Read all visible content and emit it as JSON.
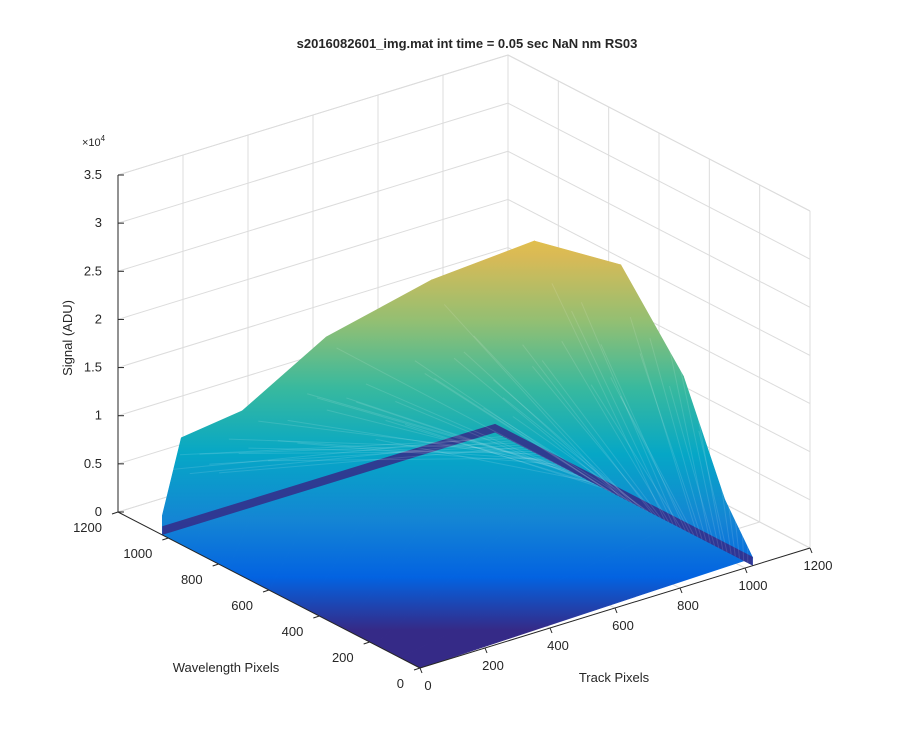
{
  "chart_data": {
    "type": "surface",
    "title": "s2016082601_img.mat int time = 0.05 sec  NaN nm RS03",
    "xlabel": "Track Pixels",
    "ylabel": "Wavelength Pixels",
    "zlabel": "Signal (ADU)",
    "xlim": [
      0,
      1200
    ],
    "ylim": [
      0,
      1200
    ],
    "zlim": [
      0,
      35000
    ],
    "z_exponent_label": "×10",
    "z_exponent_power": "4",
    "x_ticks": [
      {
        "value": 0,
        "label": "0"
      },
      {
        "value": 200,
        "label": "200"
      },
      {
        "value": 400,
        "label": "400"
      },
      {
        "value": 600,
        "label": "600"
      },
      {
        "value": 800,
        "label": "800"
      },
      {
        "value": 1000,
        "label": "1000"
      },
      {
        "value": 1200,
        "label": "1200"
      }
    ],
    "y_ticks": [
      {
        "value": 0,
        "label": "0"
      },
      {
        "value": 200,
        "label": "200"
      },
      {
        "value": 400,
        "label": "400"
      },
      {
        "value": 600,
        "label": "600"
      },
      {
        "value": 800,
        "label": "800"
      },
      {
        "value": 1000,
        "label": "1000"
      },
      {
        "value": 1200,
        "label": "1200"
      }
    ],
    "z_ticks": [
      {
        "value": 0,
        "label": "0"
      },
      {
        "value": 5000,
        "label": "0.5"
      },
      {
        "value": 10000,
        "label": "1"
      },
      {
        "value": 15000,
        "label": "1.5"
      },
      {
        "value": 20000,
        "label": "2"
      },
      {
        "value": 25000,
        "label": "2.5"
      },
      {
        "value": 30000,
        "label": "3"
      },
      {
        "value": 35000,
        "label": "3.5"
      }
    ],
    "grid": true,
    "colormap": "parula",
    "surface_extent": {
      "track": [
        0,
        1024
      ],
      "wavelength": [
        0,
        1024
      ]
    },
    "surface_ridge": [
      {
        "track": 0,
        "wavelength": 1024,
        "signal": 2000
      },
      {
        "track": 40,
        "wavelength": 1000,
        "signal": 10000
      },
      {
        "track": 150,
        "wavelength": 900,
        "signal": 13000
      },
      {
        "track": 300,
        "wavelength": 760,
        "signal": 21000
      },
      {
        "track": 500,
        "wavelength": 600,
        "signal": 27000
      },
      {
        "track": 700,
        "wavelength": 450,
        "signal": 31000
      },
      {
        "track": 850,
        "wavelength": 300,
        "signal": 29000
      },
      {
        "track": 950,
        "wavelength": 180,
        "signal": 18000
      },
      {
        "track": 1000,
        "wavelength": 80,
        "signal": 6000
      },
      {
        "track": 1024,
        "wavelength": 0,
        "signal": 800
      }
    ],
    "colors": [
      "#352a87",
      "#0363e1",
      "#1485d4",
      "#06a7c6",
      "#38b99e",
      "#92bf73",
      "#d9ba56",
      "#fcce2e",
      "#f9fb0e"
    ]
  }
}
